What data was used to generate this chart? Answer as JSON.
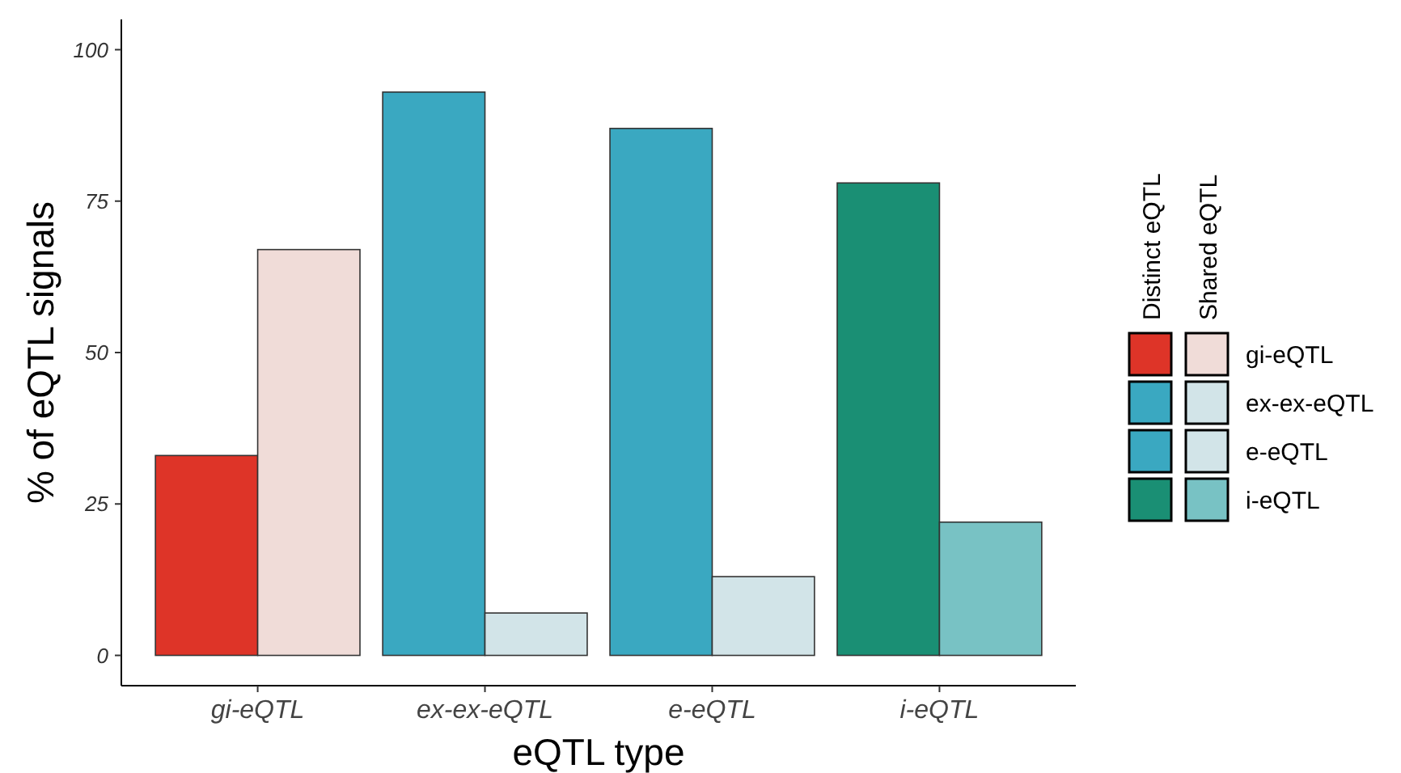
{
  "chart_data": {
    "type": "bar",
    "xlabel": "eQTL type",
    "ylabel": "% of eQTL signals",
    "categories": [
      "gi-eQTL",
      "ex-ex-eQTL",
      "e-eQTL",
      "i-eQTL"
    ],
    "series": [
      {
        "name": "Distinct eQTL",
        "colors": [
          "#de3428",
          "#3aa8c1",
          "#3aa8c1",
          "#1a8f74"
        ],
        "values": [
          33,
          93,
          87,
          78
        ]
      },
      {
        "name": "Shared eQTL",
        "colors": [
          "#f0dcd8",
          "#d2e4e8",
          "#d2e4e8",
          "#78c2c4"
        ],
        "values": [
          67,
          7,
          13,
          22
        ]
      }
    ],
    "ylim": [
      -5,
      105
    ],
    "yticks": [
      0,
      25,
      50,
      75,
      100
    ],
    "grid": false,
    "legend": "right"
  }
}
